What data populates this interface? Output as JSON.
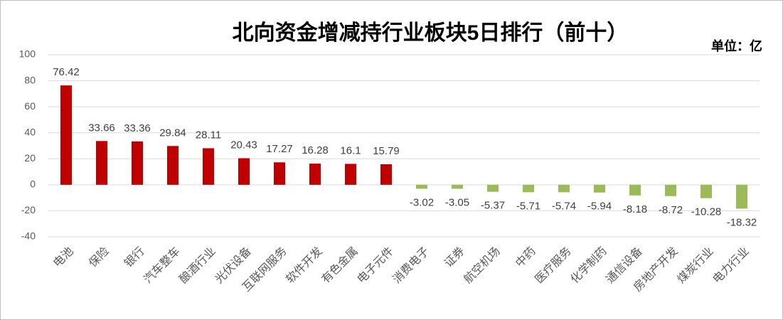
{
  "chart_data": {
    "type": "bar",
    "title": "北向资金增减持行业板块5日排行（前十）",
    "unit": "单位：亿",
    "categories": [
      "电池",
      "保险",
      "银行",
      "汽车整车",
      "酿酒行业",
      "光伏设备",
      "互联网服务",
      "软件开发",
      "有色金属",
      "电子元件",
      "消费电子",
      "证券",
      "航空机场",
      "中药",
      "医疗服务",
      "化学制药",
      "通信设备",
      "房地产开发",
      "煤炭行业",
      "电力行业"
    ],
    "values": [
      76.42,
      33.66,
      33.36,
      29.84,
      28.11,
      20.43,
      17.27,
      16.28,
      16.1,
      15.79,
      -3.02,
      -3.05,
      -5.37,
      -5.71,
      -5.74,
      -5.94,
      -8.18,
      -8.72,
      -10.28,
      -18.32
    ],
    "color": "#c00000",
    "negative_color": "#9bbb59",
    "ylim": [
      -40,
      100
    ],
    "yticks": [
      -40,
      -20,
      0,
      20,
      40,
      60,
      80,
      100
    ],
    "grid": true
  }
}
